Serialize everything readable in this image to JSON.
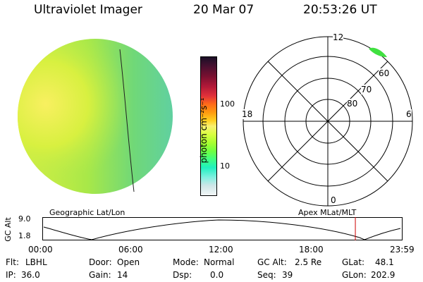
{
  "header": {
    "title": "Ultraviolet Imager",
    "date": "20 Mar 07",
    "time": "20:53:26 UT"
  },
  "colorbar": {
    "unit_label": "photon cm⁻²s⁻¹",
    "ticks": [
      "100",
      "10"
    ],
    "colors": [
      "#1a0f26",
      "#4b1030",
      "#7a1030",
      "#b01838",
      "#e0303a",
      "#ff6a1a",
      "#ff9a10",
      "#ffd020",
      "#f8f070",
      "#d8ff40",
      "#a8ff30",
      "#70ff40",
      "#40ff80",
      "#20f0c0",
      "#80f0e0",
      "#cfe6e8",
      "#f2f6f6"
    ]
  },
  "polar_plot": {
    "top_label": "12",
    "left_label": "18",
    "right_label": "6",
    "bottom_label": "0",
    "lat_labels": [
      "60",
      "70",
      "80"
    ],
    "highlight_color": "#40e040"
  },
  "timeline": {
    "y_axis_title": "GC Alt",
    "y_max": "9.0",
    "y_min": "1.8",
    "left_caption": "Geographic Lat/Lon",
    "right_caption": "Apex MLat/MLT",
    "time_ticks": [
      "00:00",
      "06:00",
      "12:00",
      "18:00",
      "23:59"
    ],
    "current_marker_hours": 20.89,
    "marker_color": "#cc0000"
  },
  "status": {
    "row1": [
      {
        "key": "Flt:",
        "value": "LBHL"
      },
      {
        "key": "Door:",
        "value": "Open"
      },
      {
        "key": "Mode:",
        "value": "Normal"
      },
      {
        "key": "GC Alt:",
        "value": "2.5 Re"
      },
      {
        "key": "GLat:",
        "value": "48.1"
      }
    ],
    "row2": [
      {
        "key": "IP:",
        "value": "36.0"
      },
      {
        "key": "Gain:",
        "value": "14"
      },
      {
        "key": "Dsp:",
        "value": "0.0"
      },
      {
        "key": "Seq:",
        "value": "39"
      },
      {
        "key": "GLon:",
        "value": "202.9"
      }
    ]
  }
}
